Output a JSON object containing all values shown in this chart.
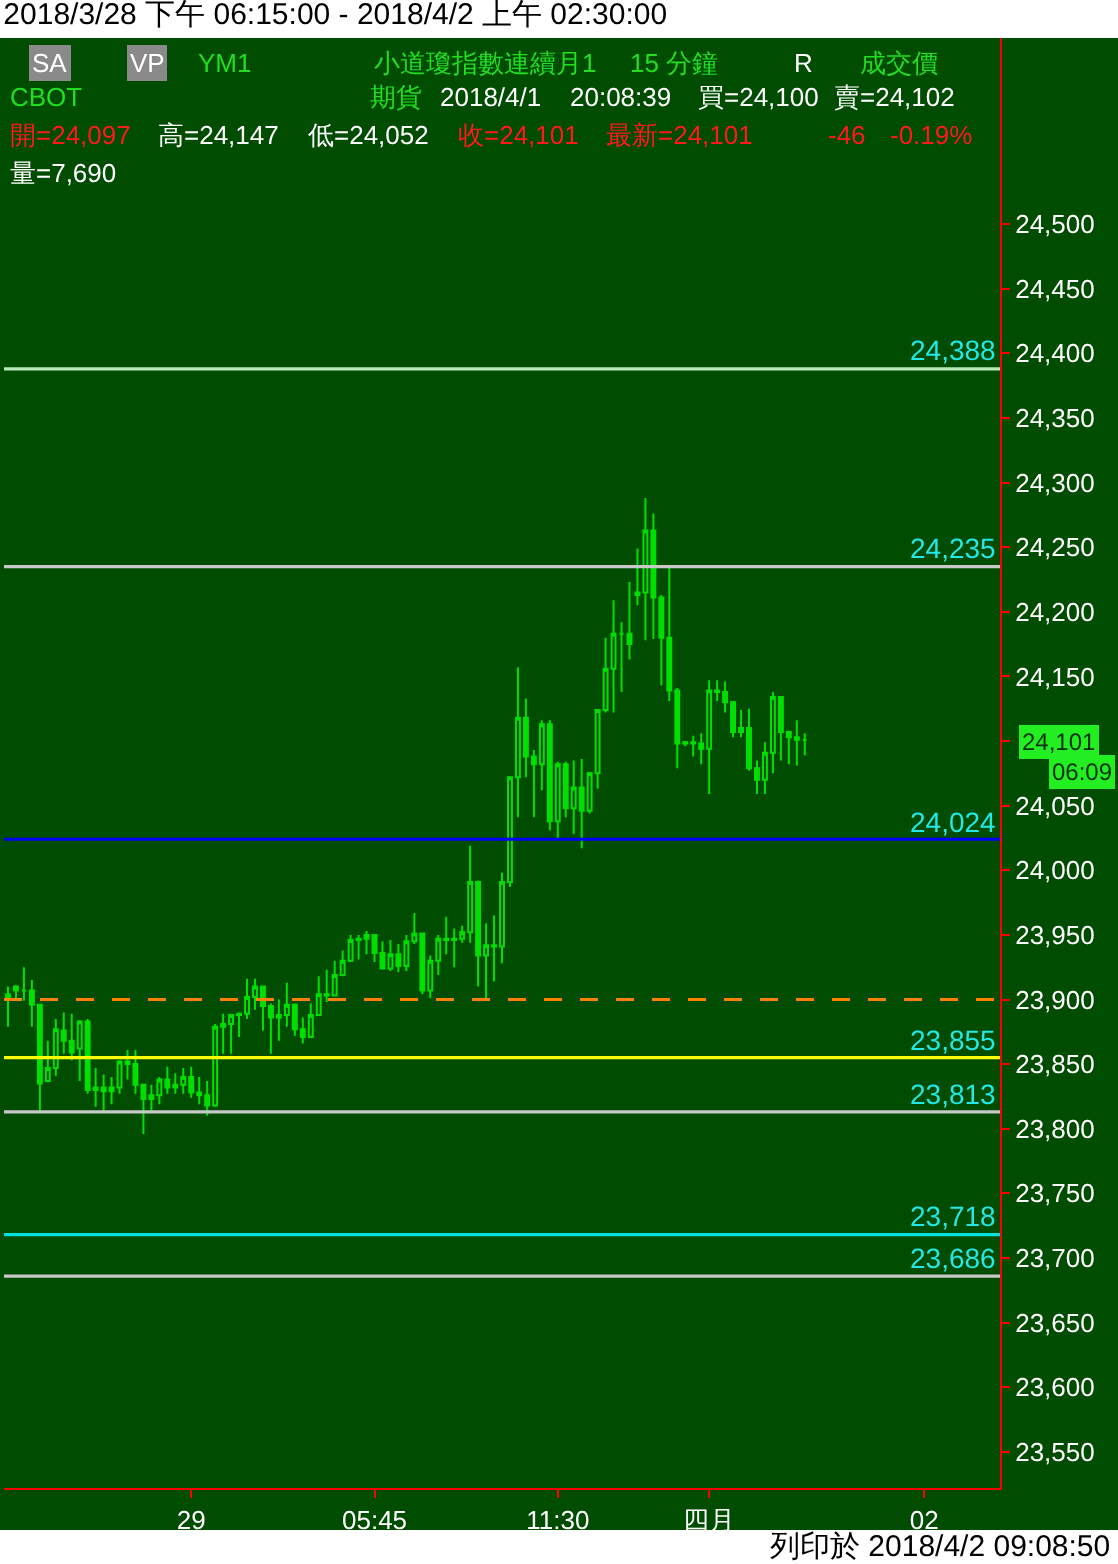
{
  "chart_data": {
    "type": "candlestick",
    "title": "2018/3/28 下午 06:15:00 - 2018/4/2 上午 02:30:00",
    "color": "#00e000",
    "categories": [
      null,
      null,
      null,
      null,
      null,
      null,
      null,
      null,
      null,
      null,
      null,
      null,
      null,
      null,
      null,
      null,
      null,
      null,
      null,
      null,
      null,
      null,
      null,
      "29",
      null,
      null,
      null,
      null,
      null,
      null,
      null,
      null,
      null,
      null,
      null,
      null,
      null,
      null,
      null,
      null,
      null,
      null,
      null,
      null,
      null,
      null,
      "05:45",
      null,
      null,
      null,
      null,
      null,
      null,
      null,
      null,
      null,
      null,
      null,
      null,
      null,
      null,
      null,
      null,
      null,
      null,
      null,
      null,
      null,
      null,
      "11:30",
      null,
      null,
      null,
      null,
      null,
      null,
      null,
      null,
      null,
      null,
      null,
      null,
      null,
      null,
      null,
      null,
      null,
      null,
      "四月",
      null,
      null,
      null,
      null,
      null,
      null,
      null,
      null,
      null,
      null,
      null,
      null,
      null,
      null,
      null,
      null,
      null,
      null,
      null,
      null,
      null,
      null,
      null,
      null,
      null,
      null,
      "02",
      null,
      null,
      null,
      null,
      null,
      null,
      null,
      null,
      null
    ],
    "ohlc": [
      [
        23904,
        23910,
        23879,
        23902
      ],
      [
        23907,
        23911,
        23900,
        23910
      ],
      [
        23907,
        23925,
        23899,
        23907
      ],
      [
        23907,
        23915,
        23879,
        23896
      ],
      [
        23896,
        23896,
        23814,
        23835
      ],
      [
        23837,
        23868,
        23836,
        23847
      ],
      [
        23847,
        23885,
        23841,
        23877
      ],
      [
        23876,
        23890,
        23858,
        23868
      ],
      [
        23868,
        23889,
        23853,
        23859
      ],
      [
        23862,
        23884,
        23837,
        23883
      ],
      [
        23883,
        23885,
        23827,
        23830
      ],
      [
        23830,
        23847,
        23817,
        23832
      ],
      [
        23832,
        23842,
        23813,
        23829
      ],
      [
        23829,
        23840,
        23819,
        23832
      ],
      [
        23832,
        23853,
        23827,
        23852
      ],
      [
        23852,
        23861,
        23838,
        23850
      ],
      [
        23850,
        23861,
        23827,
        23834
      ],
      [
        23834,
        23834,
        23796,
        23823
      ],
      [
        23823,
        23834,
        23813,
        23826
      ],
      [
        23826,
        23840,
        23819,
        23838
      ],
      [
        23838,
        23848,
        23827,
        23832
      ],
      [
        23832,
        23843,
        23827,
        23834
      ],
      [
        23834,
        23847,
        23827,
        23840
      ],
      [
        23840,
        23848,
        23824,
        23828
      ],
      [
        23828,
        23840,
        23819,
        23826
      ],
      [
        23826,
        23837,
        23810,
        23818
      ],
      [
        23818,
        23881,
        23817,
        23879
      ],
      [
        23879,
        23889,
        23858,
        23881
      ],
      [
        23881,
        23889,
        23858,
        23888
      ],
      [
        23888,
        23890,
        23871,
        23889
      ],
      [
        23889,
        23916,
        23885,
        23902
      ],
      [
        23902,
        23916,
        23892,
        23910
      ],
      [
        23910,
        23910,
        23876,
        23895
      ],
      [
        23895,
        23897,
        23858,
        23886
      ],
      [
        23886,
        23900,
        23868,
        23888
      ],
      [
        23888,
        23913,
        23879,
        23896
      ],
      [
        23896,
        23897,
        23872,
        23877
      ],
      [
        23877,
        23886,
        23866,
        23871
      ],
      [
        23871,
        23897,
        23871,
        23888
      ],
      [
        23888,
        23918,
        23888,
        23904
      ],
      [
        23904,
        23923,
        23898,
        23903
      ],
      [
        23903,
        23930,
        23903,
        23919
      ],
      [
        23919,
        23938,
        23918,
        23930
      ],
      [
        23930,
        23950,
        23929,
        23946
      ],
      [
        23946,
        23950,
        23931,
        23947
      ],
      [
        23947,
        23953,
        23935,
        23950
      ],
      [
        23950,
        23950,
        23929,
        23936
      ],
      [
        23936,
        23945,
        23924,
        23924
      ],
      [
        23924,
        23946,
        23922,
        23935
      ],
      [
        23935,
        23943,
        23921,
        23926
      ],
      [
        23926,
        23950,
        23922,
        23945
      ],
      [
        23945,
        23967,
        23943,
        23951
      ],
      [
        23951,
        23951,
        23904,
        23907
      ],
      [
        23907,
        23934,
        23901,
        23930
      ],
      [
        23930,
        23950,
        23919,
        23947
      ],
      [
        23947,
        23964,
        23935,
        23946
      ],
      [
        23946,
        23955,
        23925,
        23947
      ],
      [
        23947,
        23957,
        23944,
        23952
      ],
      [
        23952,
        24019,
        23944,
        23991
      ],
      [
        23991,
        23992,
        23910,
        23934
      ],
      [
        23934,
        23959,
        23900,
        23942
      ],
      [
        23942,
        23965,
        23914,
        23941
      ],
      [
        23941,
        23998,
        23928,
        23991
      ],
      [
        23991,
        24072,
        23987,
        24072
      ],
      [
        24072,
        24157,
        24041,
        24118
      ],
      [
        24118,
        24133,
        24072,
        24088
      ],
      [
        24088,
        24093,
        24041,
        24082
      ],
      [
        24082,
        24116,
        24062,
        24113
      ],
      [
        24113,
        24116,
        24031,
        24038
      ],
      [
        24038,
        24084,
        24025,
        24082
      ],
      [
        24082,
        24084,
        24041,
        24048
      ],
      [
        24048,
        24085,
        24028,
        24064
      ],
      [
        24064,
        24086,
        24017,
        24046
      ],
      [
        24046,
        24076,
        24044,
        24075
      ],
      [
        24075,
        24124,
        24063,
        24124
      ],
      [
        24124,
        24180,
        24122,
        24156
      ],
      [
        24156,
        24209,
        24122,
        24183
      ],
      [
        24183,
        24192,
        24138,
        24183
      ],
      [
        24183,
        24223,
        24163,
        24175
      ],
      [
        24213,
        24249,
        24205,
        24215
      ],
      [
        24215,
        24288,
        24178,
        24263
      ],
      [
        24263,
        24276,
        24179,
        24211
      ],
      [
        24211,
        24213,
        24143,
        24180
      ],
      [
        24180,
        24236,
        24131,
        24139
      ],
      [
        24139,
        24141,
        24079,
        24098
      ],
      [
        24098,
        24100,
        24096,
        24099
      ],
      [
        24099,
        24104,
        24088,
        24098
      ],
      [
        24098,
        24106,
        24082,
        24094
      ],
      [
        24094,
        24147,
        24059,
        24139
      ],
      [
        24139,
        24147,
        24131,
        24138
      ],
      [
        24138,
        24146,
        24122,
        24130
      ],
      [
        24130,
        24131,
        24103,
        24107
      ],
      [
        24107,
        24124,
        24103,
        24110
      ],
      [
        24110,
        24125,
        24077,
        24079
      ],
      [
        24079,
        24085,
        24059,
        24070
      ],
      [
        24070,
        24099,
        24059,
        24091
      ],
      [
        24091,
        24138,
        24075,
        24134
      ],
      [
        24134,
        24134,
        24085,
        24107
      ],
      [
        24107,
        24108,
        24082,
        24103
      ],
      [
        24103,
        24116,
        24081,
        24101
      ],
      [
        24101,
        24106,
        24089,
        24101
      ],
      null,
      null,
      null,
      null,
      null,
      null,
      null,
      null,
      null,
      null,
      null,
      null,
      null,
      null,
      null,
      null,
      null,
      null,
      null,
      null,
      null,
      null,
      null,
      null
    ],
    "ylim": [
      23522,
      24644
    ],
    "yticks": [
      {
        "value": 23550,
        "label": "23,550"
      },
      {
        "value": 23600,
        "label": "23,600"
      },
      {
        "value": 23650,
        "label": "23,650"
      },
      {
        "value": 23700,
        "label": "23,700"
      },
      {
        "value": 23750,
        "label": "23,750"
      },
      {
        "value": 23800,
        "label": "23,800"
      },
      {
        "value": 23850,
        "label": "23,850"
      },
      {
        "value": 23900,
        "label": "23,900"
      },
      {
        "value": 23950,
        "label": "23,950"
      },
      {
        "value": 24000,
        "label": "24,000"
      },
      {
        "value": 24050,
        "label": "24,050"
      },
      {
        "value": 24100,
        "label": null
      },
      {
        "value": 24150,
        "label": "24,150"
      },
      {
        "value": 24200,
        "label": "24,200"
      },
      {
        "value": 24250,
        "label": "24,250"
      },
      {
        "value": 24300,
        "label": "24,300"
      },
      {
        "value": 24350,
        "label": "24,350"
      },
      {
        "value": 24400,
        "label": "24,400"
      },
      {
        "value": 24450,
        "label": "24,450"
      },
      {
        "value": 24500,
        "label": "24,500"
      }
    ],
    "ref_lines": [
      {
        "axis": "y",
        "value": 24388,
        "label": "24,388",
        "color": "#b8e8b8"
      },
      {
        "axis": "y",
        "value": 24235,
        "label": "24,235",
        "color": "#c8c8c8"
      },
      {
        "axis": "y",
        "value": 24024,
        "label": "24,024",
        "color": "#0000ff"
      },
      {
        "axis": "y",
        "value": 23900,
        "label": null,
        "color": "#ff8000",
        "line_style": "dashed"
      },
      {
        "axis": "y",
        "value": 23855,
        "label": "23,855",
        "color": "#ffff00"
      },
      {
        "axis": "y",
        "value": 23813,
        "label": "23,813",
        "color": "#c8c8c8"
      },
      {
        "axis": "y",
        "value": 23718,
        "label": "23,718",
        "color": "#00e0e0"
      },
      {
        "axis": "y",
        "value": 23686,
        "label": "23,686",
        "color": "#c8c8c8"
      }
    ],
    "annotations": [
      "SA",
      "VP",
      "YM1",
      "小道瓊指數連續月1",
      "15 分鐘",
      "R",
      "成交價",
      "CBOT",
      "期貨",
      "2018/4/1",
      "20:08:39",
      "買=24,100",
      "賣=24,102",
      "開=24,097",
      "高=24,147",
      "低=24,052",
      "收=24,101",
      "最新=24,101",
      "-46",
      "-0.19%",
      "量=7,690",
      "24,101",
      "06:09",
      "列印於 2018/4/2 09:08:50"
    ]
  }
}
